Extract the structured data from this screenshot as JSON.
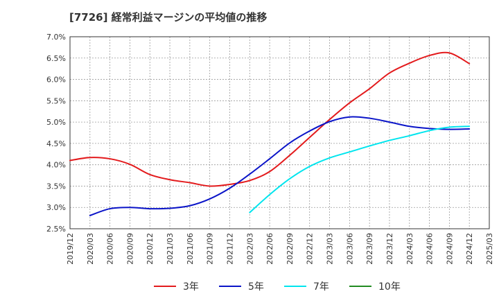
{
  "chart_data": {
    "type": "line",
    "title": "[7726]  経常利益マージンの平均値の推移",
    "xlabel": "",
    "ylabel": "",
    "ylim": [
      0.025,
      0.07
    ],
    "y_ticks": [
      0.025,
      0.03,
      0.035,
      0.04,
      0.045,
      0.05,
      0.055,
      0.06,
      0.065,
      0.07
    ],
    "y_tick_labels": [
      "2.5%",
      "3.0%",
      "3.5%",
      "4.0%",
      "4.5%",
      "5.0%",
      "5.5%",
      "6.0%",
      "6.5%",
      "7.0%"
    ],
    "x_tick_labels": [
      "2019/12",
      "2020/03",
      "2020/06",
      "2020/09",
      "2020/12",
      "2021/03",
      "2021/06",
      "2021/09",
      "2021/12",
      "2022/03",
      "2022/06",
      "2022/09",
      "2022/12",
      "2023/03",
      "2023/06",
      "2023/09",
      "2023/12",
      "2024/03",
      "2024/06",
      "2024/09",
      "2024/12",
      "2025/03"
    ],
    "grid": true,
    "legend_position": "bottom",
    "series": [
      {
        "name": "3年",
        "color": "#e31a1c",
        "x": [
          "2019/12",
          "2020/03",
          "2020/06",
          "2020/09",
          "2020/12",
          "2021/03",
          "2021/06",
          "2021/09",
          "2021/12",
          "2022/03",
          "2022/06",
          "2022/09",
          "2022/12",
          "2023/03",
          "2023/06",
          "2023/09",
          "2023/12",
          "2024/03",
          "2024/06",
          "2024/09",
          "2024/12"
        ],
        "values": [
          0.041,
          0.0417,
          0.0414,
          0.0401,
          0.0377,
          0.0365,
          0.0358,
          0.035,
          0.0354,
          0.0363,
          0.0384,
          0.0422,
          0.0464,
          0.0506,
          0.0545,
          0.0578,
          0.0615,
          0.0638,
          0.0656,
          0.0662,
          0.0637
        ]
      },
      {
        "name": "5年",
        "color": "#0a14c8",
        "x": [
          "2020/03",
          "2020/06",
          "2020/09",
          "2020/12",
          "2021/03",
          "2021/06",
          "2021/09",
          "2021/12",
          "2022/03",
          "2022/06",
          "2022/09",
          "2022/12",
          "2023/03",
          "2023/06",
          "2023/09",
          "2023/12",
          "2024/03",
          "2024/06",
          "2024/09",
          "2024/12"
        ],
        "values": [
          0.0281,
          0.0297,
          0.03,
          0.0297,
          0.0298,
          0.0304,
          0.032,
          0.0345,
          0.0378,
          0.0414,
          0.0451,
          0.0479,
          0.0501,
          0.0512,
          0.0509,
          0.05,
          0.049,
          0.0485,
          0.0483,
          0.0484
        ]
      },
      {
        "name": "7年",
        "color": "#00e5ee",
        "x": [
          "2022/03",
          "2022/06",
          "2022/09",
          "2022/12",
          "2023/03",
          "2023/06",
          "2023/09",
          "2023/12",
          "2024/03",
          "2024/06",
          "2024/09",
          "2024/12"
        ],
        "values": [
          0.0288,
          0.033,
          0.0367,
          0.0396,
          0.0416,
          0.043,
          0.0444,
          0.0457,
          0.0468,
          0.048,
          0.0488,
          0.049
        ]
      },
      {
        "name": "10年",
        "color": "#228b22",
        "x": [],
        "values": []
      }
    ]
  }
}
